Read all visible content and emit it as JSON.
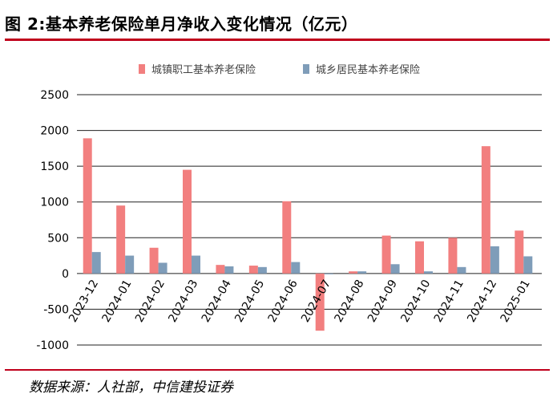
{
  "header": {
    "title": "图 2:基本养老保险单月净收入变化情况（亿元）"
  },
  "footer": {
    "source": "数据来源：人社部，中信建投证券"
  },
  "chart_data": {
    "type": "bar",
    "title": "",
    "xlabel": "",
    "ylabel": "",
    "ylim": [
      -1000,
      2500
    ],
    "yticks": [
      -1000,
      -500,
      0,
      500,
      1000,
      1500,
      2000,
      2500
    ],
    "grid": true,
    "legend": "top-center",
    "categories": [
      "2023-12",
      "2024-01",
      "2024-02",
      "2024-03",
      "2024-04",
      "2024-05",
      "2024-06",
      "2024-07",
      "2024-08",
      "2024-09",
      "2024-10",
      "2024-11",
      "2024-12",
      "2025-01"
    ],
    "series": [
      {
        "name": "城镇职工基本养老保险",
        "color": "#f27f7f",
        "values": [
          1890,
          950,
          360,
          1450,
          120,
          110,
          1010,
          -800,
          30,
          530,
          450,
          500,
          1780,
          600
        ]
      },
      {
        "name": "城乡居民基本养老保险",
        "color": "#7f9db9",
        "values": [
          300,
          250,
          150,
          250,
          100,
          90,
          160,
          -10,
          30,
          130,
          30,
          90,
          380,
          240
        ]
      }
    ]
  }
}
